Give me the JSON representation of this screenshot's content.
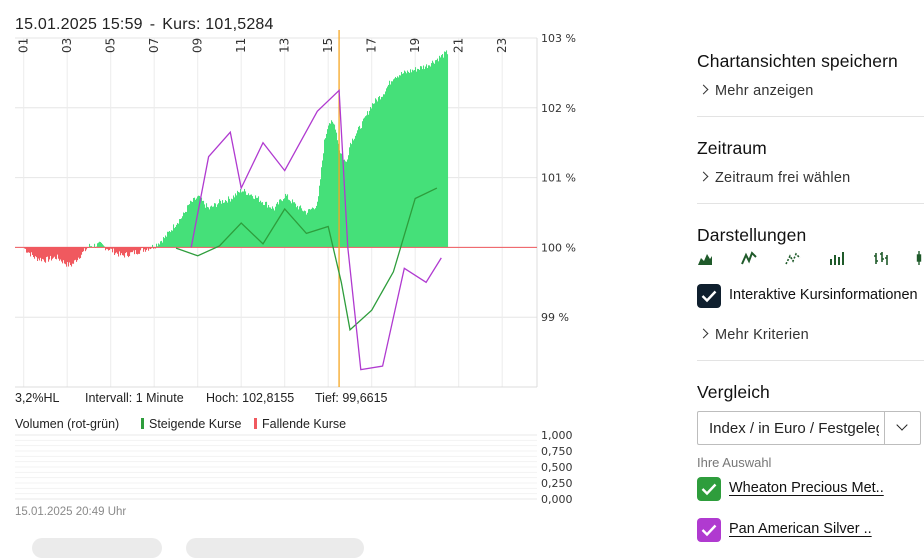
{
  "header": {
    "datetime": "15.01.2025 15:59",
    "separator": "-",
    "kurs": "Kurs: 101,5284"
  },
  "chart_data": {
    "type": "area",
    "x_ticks": [
      "01",
      "03",
      "05",
      "07",
      "09",
      "11",
      "13",
      "15",
      "17",
      "19",
      "21",
      "23"
    ],
    "y_ticks": [
      "103 %",
      "102 %",
      "101 %",
      "100 %",
      "99 %"
    ],
    "ylim": [
      98.0,
      103.0
    ],
    "baseline": 100,
    "area_colors": {
      "above": "#45e079",
      "below": "#f0595f"
    },
    "grid": true,
    "marker_day": 15.5,
    "marker_color": "#f5a623",
    "area_series": {
      "name": "Kurs",
      "x": [
        1,
        1.5,
        2,
        2.5,
        3,
        3.2,
        3.5,
        4,
        4.5,
        5,
        5.5,
        6,
        6.5,
        7,
        7.5,
        8,
        8.3,
        8.6,
        9,
        9.5,
        10,
        10.5,
        11,
        11.5,
        12,
        12.5,
        13,
        13.5,
        14,
        14.5,
        14.8,
        15,
        15.3,
        15.5,
        15.8,
        16,
        16.3,
        16.6,
        17,
        17.5,
        18,
        18.5,
        19,
        19.5,
        20,
        20.5
      ],
      "y": [
        99.99,
        99.85,
        99.82,
        99.86,
        99.75,
        99.75,
        99.86,
        100.02,
        100.04,
        99.96,
        99.88,
        99.92,
        99.97,
        100.02,
        100.15,
        100.35,
        100.45,
        100.62,
        100.72,
        100.55,
        100.65,
        100.7,
        100.82,
        100.75,
        100.65,
        100.55,
        100.75,
        100.6,
        100.5,
        100.62,
        101.5,
        101.8,
        101.75,
        101.4,
        101.2,
        101.5,
        101.65,
        101.8,
        102.05,
        102.2,
        102.45,
        102.5,
        102.55,
        102.6,
        102.7,
        102.8
      ]
    },
    "comparison_series": [
      {
        "name": "Wheaton Precious Metals",
        "color": "#2e9d3c",
        "x": [
          8,
          9,
          10,
          11,
          12,
          13,
          14,
          15,
          15.6,
          16,
          17,
          18,
          19,
          20
        ],
        "y": [
          99.99,
          99.88,
          100.02,
          100.35,
          100.05,
          100.55,
          100.2,
          100.3,
          99.5,
          98.82,
          99.1,
          99.65,
          100.7,
          100.85
        ]
      },
      {
        "name": "Pan American Silver",
        "color": "#b03ad0",
        "x": [
          8.7,
          9.5,
          10.5,
          11,
          12,
          13,
          14.5,
          15.5,
          15.9,
          16.5,
          17.5,
          18.5,
          19.5,
          20.2
        ],
        "y": [
          100.0,
          101.3,
          101.65,
          100.85,
          101.5,
          101.1,
          101.95,
          102.25,
          100.0,
          98.25,
          98.3,
          99.7,
          99.5,
          99.85
        ]
      }
    ],
    "volume": {
      "ylabel": "Volumen (rot-grün)",
      "y_ticks": [
        "1,000",
        "0,750",
        "0,500",
        "0,250",
        "0,000"
      ]
    }
  },
  "info_row": {
    "hl": "3,2%HL",
    "intervall": "Intervall: 1 Minute",
    "hoch": "Hoch: 102,8155",
    "tief": "Tief: 99,6615"
  },
  "volume_legend": {
    "title": "Volumen (rot-grün)",
    "up": "Steigende Kurse",
    "down": "Fallende Kurse",
    "up_color": "#2e9d3c",
    "down_color": "#f0595f"
  },
  "timestamp": "15.01.2025 20:49 Uhr",
  "panel": {
    "save": {
      "title": "Chartansichten speichern",
      "link": "Mehr anzeigen"
    },
    "zeitraum": {
      "title": "Zeitraum",
      "link": "Zeitraum frei wählen"
    },
    "darstellungen": {
      "title": "Darstellungen",
      "icons": [
        "mountain-chart-icon",
        "line-chart-icon",
        "dotted-line-chart-icon",
        "bar-chart-icon",
        "ohlc-chart-icon",
        "candlestick-chart-icon"
      ],
      "checkbox_label": "Interaktive Kursinformationen",
      "more": "Mehr Kriterien"
    },
    "vergleich": {
      "title": "Vergleich",
      "select_value": "Index / in Euro / Festgelegt",
      "auswahl_label": "Ihre Auswahl",
      "items": [
        {
          "label": "Wheaton Precious Met..",
          "color": "#2e9d3c"
        },
        {
          "label": "Pan American Silver ..",
          "color": "#b03ad0"
        }
      ]
    },
    "checkbox_dark": "#0f1f2e"
  }
}
